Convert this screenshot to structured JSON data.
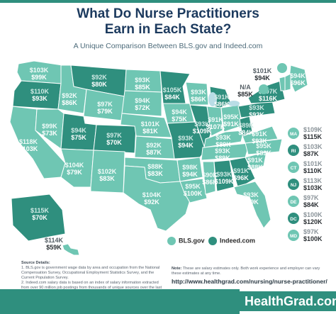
{
  "title_line1": "What Do Nurse Practitioners",
  "title_line2": "Earn in Each State?",
  "subtitle": "A Unique Comparison Between BLS.gov and Indeed.com",
  "colors": {
    "light": "#6fc6b3",
    "dark": "#2f8f7e",
    "lake": "#b9dde6",
    "border": "#ffffff"
  },
  "legend": {
    "bls": "BLS.gov",
    "indeed": "Indeed.com"
  },
  "states": [
    {
      "id": "WA",
      "bls": "$103K",
      "indeed": "$99K",
      "shade": "light"
    },
    {
      "id": "OR",
      "bls": "$110K",
      "indeed": "$93K",
      "shade": "dark"
    },
    {
      "id": "CA",
      "bls": "$118K",
      "indeed": "$103K",
      "shade": "light"
    },
    {
      "id": "ID",
      "bls": "$92K",
      "indeed": "$86K",
      "shade": "light"
    },
    {
      "id": "NV",
      "bls": "$99K",
      "indeed": "$73K",
      "shade": "light"
    },
    {
      "id": "MT",
      "bls": "$92K",
      "indeed": "$80K",
      "shade": "dark"
    },
    {
      "id": "WY",
      "bls": "$97K",
      "indeed": "$79K",
      "shade": "light"
    },
    {
      "id": "UT",
      "bls": "$94K",
      "indeed": "$75K",
      "shade": "dark"
    },
    {
      "id": "AZ",
      "bls": "$104K",
      "indeed": "$79K",
      "shade": "light"
    },
    {
      "id": "CO",
      "bls": "$97K",
      "indeed": "$70K",
      "shade": "dark"
    },
    {
      "id": "NM",
      "bls": "$102K",
      "indeed": "$83K",
      "shade": "light"
    },
    {
      "id": "ND",
      "bls": "$93K",
      "indeed": "$85K",
      "shade": "light"
    },
    {
      "id": "SD",
      "bls": "$94K",
      "indeed": "$72K",
      "shade": "light"
    },
    {
      "id": "NE",
      "bls": "$101K",
      "indeed": "$81K",
      "shade": "light"
    },
    {
      "id": "KS",
      "bls": "$92K",
      "indeed": "$87K",
      "shade": "light"
    },
    {
      "id": "OK",
      "bls": "$88K",
      "indeed": "$83K",
      "shade": "light"
    },
    {
      "id": "TX",
      "bls": "$104K",
      "indeed": "$92K",
      "shade": "light"
    },
    {
      "id": "MN",
      "bls": "$105K",
      "indeed": "$84K",
      "shade": "dark"
    },
    {
      "id": "IA",
      "bls": "$94K",
      "indeed": "$75K",
      "shade": "light"
    },
    {
      "id": "MO",
      "bls": "$93K",
      "indeed": "$94K",
      "shade": "dark"
    },
    {
      "id": "AR",
      "bls": "$98K",
      "indeed": "$94K",
      "shade": "light"
    },
    {
      "id": "LA",
      "bls": "$95K",
      "indeed": "$100K",
      "shade": "light"
    },
    {
      "id": "WI",
      "bls": "$93K",
      "indeed": "$86K",
      "shade": "light"
    },
    {
      "id": "IL",
      "bls": "$93K",
      "indeed": "$109K",
      "shade": "dark"
    },
    {
      "id": "MS",
      "bls": "$90K",
      "indeed": "$86K",
      "shade": "light"
    },
    {
      "id": "MI",
      "bls": "$91K",
      "indeed": "$86K",
      "shade": "dark"
    },
    {
      "id": "IN",
      "bls": "$91K",
      "indeed": "$107K",
      "shade": "light"
    },
    {
      "id": "TN",
      "bls": "$93K",
      "indeed": "$89K",
      "shade": "light"
    },
    {
      "id": "AL",
      "bls": "$93K",
      "indeed": "$109K",
      "shade": "dark"
    },
    {
      "id": "OH",
      "bls": "$95K",
      "indeed": "$91K",
      "shade": "light"
    },
    {
      "id": "KY",
      "bls": "$93K",
      "indeed": "$89K",
      "shade": "light"
    },
    {
      "id": "GA",
      "bls": "$91K",
      "indeed": "$96K",
      "shade": "dark"
    },
    {
      "id": "WV",
      "bls": "$89K",
      "indeed": "$84K",
      "shade": "dark"
    },
    {
      "id": "VA",
      "bls": "$91K",
      "indeed": "$93K",
      "shade": "light"
    },
    {
      "id": "NC",
      "bls": "$95K",
      "indeed": "$89K",
      "shade": "light"
    },
    {
      "id": "SC",
      "bls": "$91K",
      "indeed": "$88K",
      "shade": "light"
    },
    {
      "id": "FL",
      "bls": "$93K",
      "indeed": "$89K",
      "shade": "light"
    },
    {
      "id": "PA",
      "bls": "$93K",
      "indeed": "$92K",
      "shade": "dark"
    },
    {
      "id": "NY",
      "bls": "$107K",
      "indeed": "$116K",
      "shade": "dark"
    },
    {
      "id": "ME",
      "bls": "$94K",
      "indeed": "$96K",
      "shade": "light"
    },
    {
      "id": "NH",
      "bls": "$101K",
      "indeed": "$94K",
      "shade": "light"
    },
    {
      "id": "VT",
      "bls": "N/A",
      "indeed": "$85K",
      "shade": "light"
    },
    {
      "id": "AK",
      "bls": "$115K",
      "indeed": "$70K",
      "shade": "dark"
    },
    {
      "id": "HI",
      "bls": "$114K",
      "indeed": "$59K",
      "shade": "light"
    }
  ],
  "side_states": [
    {
      "id": "MA",
      "bls": "$109K",
      "indeed": "$115K",
      "shade": "light"
    },
    {
      "id": "RI",
      "bls": "$103K",
      "indeed": "$87K",
      "shade": "dark"
    },
    {
      "id": "CT",
      "bls": "$101K",
      "indeed": "$110K",
      "shade": "light"
    },
    {
      "id": "NJ",
      "bls": "$113K",
      "indeed": "$103K",
      "shade": "dark"
    },
    {
      "id": "DE",
      "bls": "$97K",
      "indeed": "$84K",
      "shade": "light"
    },
    {
      "id": "DC",
      "bls": "$100K",
      "indeed": "$120K",
      "shade": "dark"
    },
    {
      "id": "MD",
      "bls": "$97K",
      "indeed": "$100K",
      "shade": "light"
    }
  ],
  "sources_heading": "Source Details:",
  "source1": "1. BLS.gov is government wage data by area and occupation from the National Compensation Survey, Occupational Employment Statistics Survey, and the Current Population Survey.",
  "source2": "2. Indeed.com salary data is based on an index of salary information extracted from over 90 million job postings from thousands of unique sources over the last 12 months.",
  "note_label": "Note:",
  "note": "These are salary estimates only. Both work experience and employer can vary these estimates at any time.",
  "url": "http://www.healthgrad.com/nursing/nurse-practitioner/",
  "brand": "HealthGrad.com"
}
